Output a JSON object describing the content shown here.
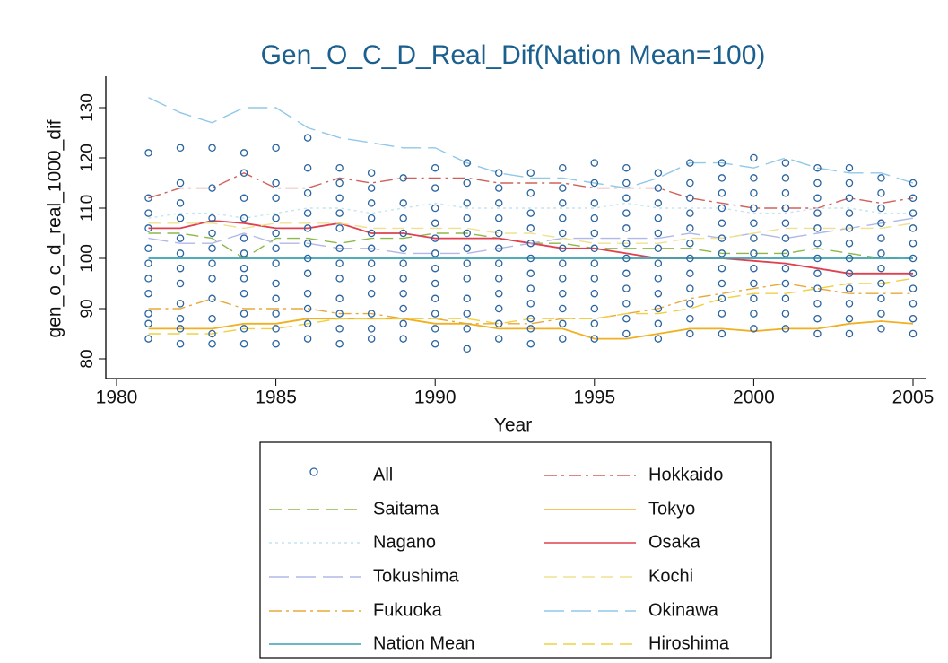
{
  "chart_data": {
    "type": "line",
    "title": "Gen_O_C_D_Real_Dif(Nation Mean=100)",
    "x_label": "Year",
    "y_label": "gen_o_c_d_real_1000_dif",
    "x": [
      1981,
      1982,
      1983,
      1984,
      1985,
      1986,
      1987,
      1988,
      1989,
      1990,
      1991,
      1992,
      1993,
      1994,
      1995,
      1996,
      1997,
      1998,
      1999,
      2000,
      2001,
      2002,
      2003,
      2004,
      2005
    ],
    "xlim": [
      1980,
      2005
    ],
    "xticks": [
      1980,
      1985,
      1990,
      1995,
      2000,
      2005
    ],
    "ylim": [
      78,
      135
    ],
    "yticks": [
      80,
      90,
      100,
      110,
      120,
      130
    ],
    "series": [
      {
        "name": "All",
        "color": "#2a64a0",
        "style": "circle",
        "values": [
          [
            84,
            87,
            89,
            93,
            96,
            99,
            102,
            106,
            109,
            112,
            121
          ],
          [
            83,
            86,
            88,
            91,
            95,
            98,
            101,
            104,
            108,
            111,
            115,
            122
          ],
          [
            83,
            85,
            88,
            92,
            96,
            99,
            102,
            105,
            108,
            114,
            122
          ],
          [
            83,
            86,
            89,
            93,
            96,
            98,
            101,
            104,
            108,
            112,
            117,
            121
          ],
          [
            83,
            86,
            89,
            92,
            95,
            99,
            102,
            105,
            108,
            112,
            115,
            122
          ],
          [
            84,
            87,
            90,
            93,
            97,
            100,
            103,
            106,
            109,
            113,
            118,
            124
          ],
          [
            83,
            86,
            89,
            92,
            96,
            99,
            102,
            106,
            109,
            112,
            115,
            118
          ],
          [
            84,
            86,
            89,
            93,
            96,
            99,
            102,
            105,
            108,
            111,
            114,
            117
          ],
          [
            84,
            87,
            90,
            93,
            96,
            99,
            102,
            105,
            108,
            111,
            116
          ],
          [
            83,
            86,
            89,
            92,
            95,
            98,
            101,
            104,
            107,
            110,
            114,
            118
          ],
          [
            82,
            86,
            89,
            92,
            96,
            99,
            102,
            105,
            108,
            111,
            115,
            119
          ],
          [
            84,
            87,
            90,
            93,
            96,
            99,
            102,
            105,
            108,
            111,
            114,
            117
          ],
          [
            83,
            86,
            88,
            91,
            94,
            97,
            100,
            103,
            106,
            109,
            113,
            117
          ],
          [
            84,
            87,
            90,
            93,
            96,
            99,
            102,
            105,
            108,
            111,
            114,
            118
          ],
          [
            84,
            87,
            90,
            93,
            96,
            99,
            102,
            105,
            108,
            111,
            115,
            119
          ],
          [
            85,
            88,
            91,
            94,
            97,
            100,
            103,
            106,
            109,
            112,
            115,
            118
          ],
          [
            84,
            87,
            90,
            93,
            96,
            99,
            102,
            105,
            108,
            111,
            114,
            117
          ],
          [
            85,
            88,
            91,
            94,
            97,
            100,
            103,
            106,
            109,
            112,
            115,
            119
          ],
          [
            85,
            89,
            92,
            95,
            98,
            101,
            104,
            107,
            110,
            113,
            116,
            119
          ],
          [
            86,
            89,
            92,
            95,
            98,
            101,
            104,
            107,
            110,
            113,
            116,
            120
          ],
          [
            86,
            89,
            92,
            95,
            98,
            101,
            104,
            107,
            110,
            113,
            116,
            119
          ],
          [
            85,
            88,
            91,
            94,
            97,
            100,
            103,
            106,
            109,
            112,
            115,
            118
          ],
          [
            85,
            88,
            91,
            94,
            97,
            100,
            103,
            106,
            109,
            112,
            115,
            118
          ],
          [
            86,
            89,
            92,
            95,
            98,
            101,
            104,
            107,
            110,
            113,
            116
          ],
          [
            85,
            88,
            91,
            94,
            97,
            100,
            103,
            106,
            109,
            112,
            115
          ]
        ]
      },
      {
        "name": "Hokkaido",
        "color": "#d0605a",
        "style": "dashdot",
        "values": [
          112,
          114,
          114,
          117,
          114,
          114,
          116,
          115,
          116,
          116,
          116,
          115,
          115,
          115,
          114,
          114,
          114,
          112,
          111,
          110,
          110,
          110,
          112,
          111,
          112
        ]
      },
      {
        "name": "Saitama",
        "color": "#8cb848",
        "style": "dash",
        "values": [
          105,
          105,
          104,
          100,
          104,
          104,
          103,
          104,
          104,
          105,
          105,
          104,
          103,
          103,
          102,
          102,
          102,
          102,
          101,
          101,
          101,
          102,
          101,
          100,
          100
        ]
      },
      {
        "name": "Tokyo",
        "color": "#f0b020",
        "style": "solid",
        "values": [
          86,
          86,
          86,
          87,
          87,
          88,
          88,
          88,
          88,
          87,
          87,
          86,
          86,
          86,
          84,
          84,
          85,
          86,
          86,
          85.5,
          86,
          86,
          87,
          87.5,
          87
        ]
      },
      {
        "name": "Nagano",
        "color": "#c4e4ee",
        "style": "dot",
        "values": [
          108,
          109,
          109,
          108,
          109,
          110,
          110,
          109,
          110,
          111,
          110,
          110,
          110,
          110,
          110,
          111,
          110,
          110,
          110,
          109,
          109,
          110,
          110,
          109,
          109
        ]
      },
      {
        "name": "Osaka",
        "color": "#e04050",
        "style": "solid",
        "values": [
          106,
          106,
          107.5,
          107,
          106,
          106,
          107,
          105,
          105,
          104,
          104,
          104,
          103,
          102,
          102,
          101,
          100,
          100,
          100,
          99.5,
          99,
          98,
          97,
          97,
          97
        ]
      },
      {
        "name": "Tokushima",
        "color": "#b0b8e8",
        "style": "longdash",
        "values": [
          104,
          103,
          103,
          105,
          103,
          103,
          102,
          102,
          101,
          101,
          101,
          102,
          103,
          104,
          104,
          104,
          104,
          105,
          104,
          105,
          104,
          105,
          106,
          107,
          108
        ]
      },
      {
        "name": "Kochi",
        "color": "#f0e090",
        "style": "dash",
        "values": [
          107,
          107,
          107,
          106,
          107,
          107,
          107,
          106,
          106,
          106,
          106,
          105,
          105,
          104,
          103,
          103,
          103,
          104,
          104,
          105,
          106,
          106,
          106,
          106,
          107
        ]
      },
      {
        "name": "Fukuoka",
        "color": "#e8a838",
        "style": "dashdot",
        "values": [
          90,
          90,
          92,
          90,
          90,
          90,
          89,
          89,
          88,
          88,
          87,
          87,
          87,
          88,
          88,
          89,
          90,
          92,
          93,
          94,
          95,
          94,
          93,
          93,
          93
        ]
      },
      {
        "name": "Okinawa",
        "color": "#90c8e8",
        "style": "longdash",
        "values": [
          132,
          129,
          127,
          130,
          130,
          126,
          124,
          123,
          122,
          122,
          119,
          117,
          116,
          116,
          115,
          114,
          116,
          119,
          119,
          118,
          120,
          118,
          117,
          117,
          115
        ]
      },
      {
        "name": "Nation Mean",
        "color": "#3aa0b0",
        "style": "solid",
        "values": [
          100,
          100,
          100,
          100,
          100,
          100,
          100,
          100,
          100,
          100,
          100,
          100,
          100,
          100,
          100,
          100,
          100,
          100,
          100,
          100,
          100,
          100,
          100,
          100,
          100
        ]
      },
      {
        "name": "Hiroshima",
        "color": "#f0d040",
        "style": "dash",
        "values": [
          85,
          85,
          85,
          86,
          86,
          87,
          88,
          88,
          88,
          88,
          88,
          87,
          88,
          88,
          88,
          89,
          89,
          90,
          92,
          93,
          93,
          94,
          95,
          95,
          96
        ]
      }
    ]
  }
}
